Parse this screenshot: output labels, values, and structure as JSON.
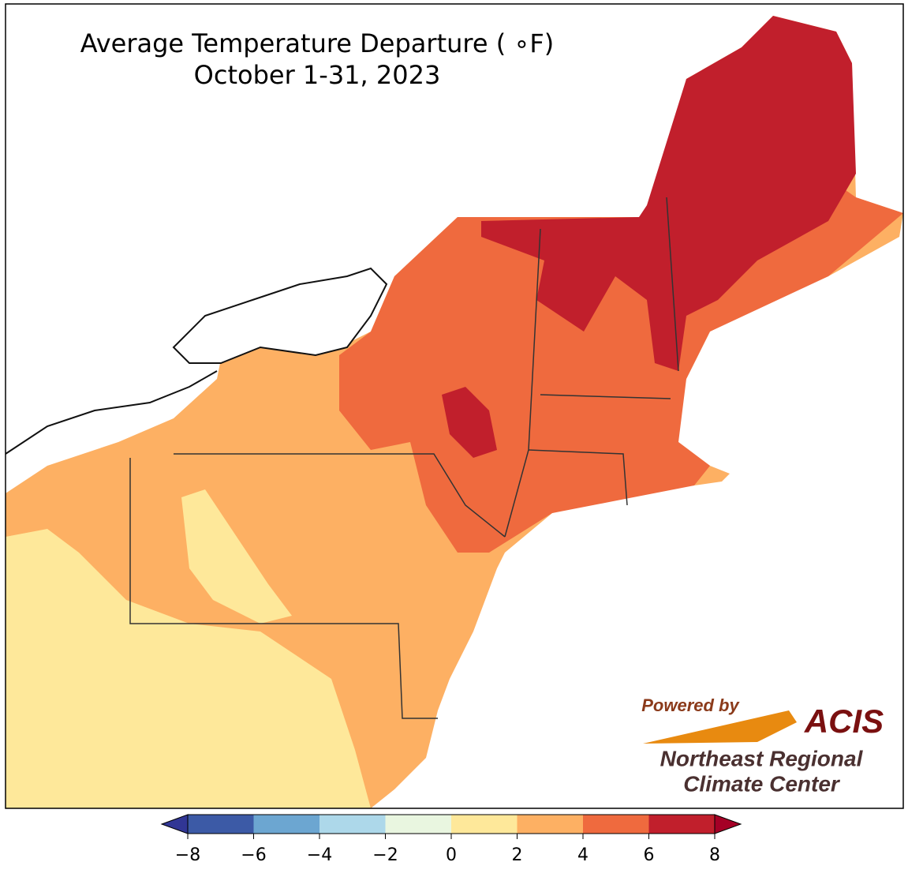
{
  "map": {
    "title": "Average Temperature Departure ( ∘F)",
    "subtitle": "October 1-31, 2023",
    "colorbar": {
      "range": [
        -8,
        8
      ],
      "ticks": [
        {
          "value": -8,
          "label": "−8"
        },
        {
          "value": -6,
          "label": "−6"
        },
        {
          "value": -4,
          "label": "−4"
        },
        {
          "value": -2,
          "label": "−2"
        },
        0,
        2,
        4,
        6,
        8
      ],
      "colors": [
        "#3c5aa6",
        "#6ca6d1",
        "#add8ea",
        "#e9f6e0",
        "#fee89a",
        "#fdb063",
        "#ef6a3e",
        "#c11f2c"
      ],
      "under_color": "#313695",
      "over_color": "#a50026"
    },
    "logo": {
      "powered": "Powered by",
      "name": "ACIS",
      "org_line1": "Northeast Regional",
      "org_line2": "Climate Center"
    }
  }
}
